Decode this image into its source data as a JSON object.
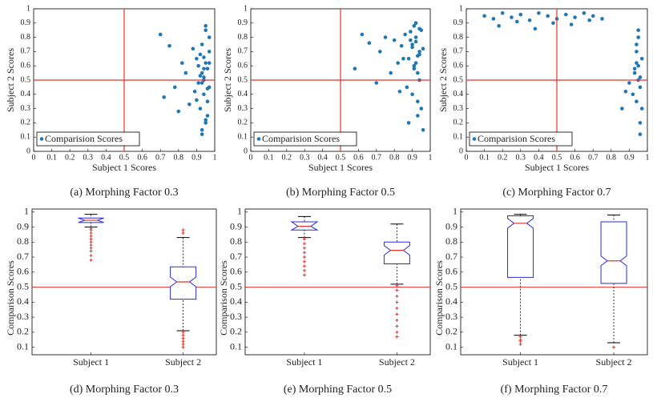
{
  "chart_data": [
    {
      "type": "scatter",
      "caption": "(a) Morphing Factor 0.3",
      "xlabel": "Subject 1 Scores",
      "ylabel": "Subject 2 Scores",
      "xlim": [
        0,
        1
      ],
      "ylim": [
        0,
        1
      ],
      "xticks": [
        0,
        0.1,
        0.2,
        0.3,
        0.4,
        0.5,
        0.6,
        0.7,
        0.8,
        0.9,
        1
      ],
      "yticks": [
        0,
        0.1,
        0.2,
        0.3,
        0.4,
        0.5,
        0.6,
        0.7,
        0.8,
        0.9,
        1
      ],
      "reference_x": 0.5,
      "reference_y": 0.5,
      "reference_color": "#e8332c",
      "series": [
        {
          "name": "Comparision Scores",
          "color": "#1f77b4",
          "x": [
            0.93,
            0.95,
            0.91,
            0.97,
            0.94,
            0.96,
            0.92,
            0.9,
            0.95,
            0.93,
            0.97,
            0.94,
            0.96,
            0.91,
            0.95,
            0.93,
            0.92,
            0.96,
            0.94,
            0.97,
            0.89,
            0.88,
            0.86,
            0.84,
            0.82,
            0.8,
            0.78,
            0.75,
            0.72,
            0.7,
            0.93,
            0.95,
            0.94,
            0.96,
            0.92,
            0.9,
            0.97,
            0.95,
            0.93,
            0.94
          ],
          "y": [
            0.55,
            0.62,
            0.48,
            0.7,
            0.4,
            0.58,
            0.3,
            0.65,
            0.2,
            0.75,
            0.45,
            0.52,
            0.35,
            0.6,
            0.85,
            0.12,
            0.68,
            0.25,
            0.5,
            0.8,
            0.42,
            0.72,
            0.33,
            0.55,
            0.62,
            0.28,
            0.45,
            0.74,
            0.38,
            0.82,
            0.15,
            0.88,
            0.58,
            0.44,
            0.53,
            0.36,
            0.62,
            0.22,
            0.48,
            0.66
          ]
        }
      ]
    },
    {
      "type": "scatter",
      "caption": "(b) Morphing Factor 0.5",
      "xlabel": "Subject 1 Scores",
      "ylabel": "Subject 2 Scores",
      "xlim": [
        0,
        1
      ],
      "ylim": [
        0,
        1
      ],
      "xticks": [
        0,
        0.1,
        0.2,
        0.3,
        0.4,
        0.5,
        0.6,
        0.7,
        0.8,
        0.9,
        1
      ],
      "yticks": [
        0,
        0.1,
        0.2,
        0.3,
        0.4,
        0.5,
        0.6,
        0.7,
        0.8,
        0.9,
        1
      ],
      "reference_x": 0.5,
      "reference_y": 0.5,
      "reference_color": "#e8332c",
      "series": [
        {
          "name": "Comparision Scores",
          "color": "#1f77b4",
          "x": [
            0.9,
            0.92,
            0.94,
            0.88,
            0.95,
            0.91,
            0.93,
            0.89,
            0.96,
            0.87,
            0.92,
            0.94,
            0.9,
            0.93,
            0.86,
            0.84,
            0.82,
            0.8,
            0.78,
            0.75,
            0.72,
            0.7,
            0.66,
            0.62,
            0.58,
            0.91,
            0.93,
            0.95,
            0.89,
            0.92,
            0.94,
            0.88,
            0.9,
            0.85,
            0.83,
            0.96,
            0.92,
            0.94,
            0.91,
            0.93
          ],
          "y": [
            0.75,
            0.8,
            0.7,
            0.65,
            0.85,
            0.6,
            0.55,
            0.78,
            0.72,
            0.45,
            0.9,
            0.68,
            0.4,
            0.35,
            0.82,
            0.74,
            0.62,
            0.78,
            0.55,
            0.8,
            0.7,
            0.48,
            0.76,
            0.82,
            0.58,
            0.88,
            0.25,
            0.3,
            0.84,
            0.62,
            0.5,
            0.2,
            0.73,
            0.65,
            0.42,
            0.15,
            0.77,
            0.86,
            0.58,
            0.67
          ]
        }
      ]
    },
    {
      "type": "scatter",
      "caption": "(c) Morphing Factor 0.7",
      "xlabel": "Subject 1 Scores",
      "ylabel": "Subject 2 Scores",
      "xlim": [
        0,
        1
      ],
      "ylim": [
        0,
        1
      ],
      "xticks": [
        0,
        0.1,
        0.2,
        0.3,
        0.4,
        0.5,
        0.6,
        0.7,
        0.8,
        0.9,
        1
      ],
      "yticks": [
        0,
        0.1,
        0.2,
        0.3,
        0.4,
        0.5,
        0.6,
        0.7,
        0.8,
        0.9,
        1
      ],
      "reference_x": 0.5,
      "reference_y": 0.5,
      "reference_color": "#e8332c",
      "series": [
        {
          "name": "Comparision Scores",
          "color": "#1f77b4",
          "x": [
            0.1,
            0.15,
            0.2,
            0.25,
            0.3,
            0.35,
            0.4,
            0.45,
            0.5,
            0.55,
            0.6,
            0.65,
            0.7,
            0.75,
            0.18,
            0.28,
            0.38,
            0.48,
            0.58,
            0.68,
            0.94,
            0.95,
            0.96,
            0.93,
            0.97,
            0.94,
            0.95,
            0.96,
            0.92,
            0.97,
            0.94,
            0.95,
            0.93,
            0.96,
            0.9,
            0.88,
            0.86,
            0.95,
            0.94,
            0.96
          ],
          "y": [
            0.95,
            0.93,
            0.97,
            0.94,
            0.96,
            0.92,
            0.97,
            0.95,
            0.93,
            0.96,
            0.94,
            0.97,
            0.95,
            0.93,
            0.88,
            0.91,
            0.86,
            0.9,
            0.89,
            0.92,
            0.75,
            0.6,
            0.45,
            0.55,
            0.3,
            0.7,
            0.5,
            0.2,
            0.4,
            0.65,
            0.35,
            0.8,
            0.58,
            0.12,
            0.48,
            0.42,
            0.3,
            0.85,
            0.62,
            0.52
          ]
        }
      ]
    },
    {
      "type": "box",
      "caption": "(d) Morphing Factor 0.3",
      "ylabel": "Comparison Scores",
      "categories": [
        "Subject 1",
        "Subject 2"
      ],
      "ylim": [
        0.05,
        1.02
      ],
      "yticks": [
        0.1,
        0.2,
        0.3,
        0.4,
        0.5,
        0.6,
        0.7,
        0.8,
        0.9,
        1
      ],
      "reference_y": 0.5,
      "reference_color": "#e8332c",
      "boxes": [
        {
          "whislo": 0.9,
          "q1": 0.93,
          "med": 0.945,
          "q3": 0.96,
          "whishi": 0.985,
          "fliers": [
            0.68,
            0.71,
            0.74,
            0.76,
            0.78,
            0.8,
            0.82,
            0.84,
            0.86,
            0.88,
            0.89
          ]
        },
        {
          "whislo": 0.21,
          "q1": 0.42,
          "med": 0.535,
          "q3": 0.635,
          "whishi": 0.83,
          "fliers": [
            0.1,
            0.12,
            0.14,
            0.16,
            0.18,
            0.2,
            0.86,
            0.88
          ]
        }
      ]
    },
    {
      "type": "box",
      "caption": "(e) Morphing Factor 0.5",
      "ylabel": "Comparison Scores",
      "categories": [
        "Subject 1",
        "Subject 2"
      ],
      "ylim": [
        0.05,
        1.02
      ],
      "yticks": [
        0.1,
        0.2,
        0.3,
        0.4,
        0.5,
        0.6,
        0.7,
        0.8,
        0.9,
        1
      ],
      "reference_y": 0.5,
      "reference_color": "#e8332c",
      "boxes": [
        {
          "whislo": 0.83,
          "q1": 0.88,
          "med": 0.905,
          "q3": 0.935,
          "whishi": 0.97,
          "fliers": [
            0.58,
            0.61,
            0.64,
            0.67,
            0.7,
            0.73,
            0.76,
            0.79,
            0.82
          ]
        },
        {
          "whislo": 0.52,
          "q1": 0.655,
          "med": 0.745,
          "q3": 0.8,
          "whishi": 0.92,
          "fliers": [
            0.17,
            0.2,
            0.24,
            0.28,
            0.32,
            0.36,
            0.4,
            0.44,
            0.48,
            0.51
          ]
        }
      ]
    },
    {
      "type": "box",
      "caption": "(f) Morphing Factor 0.7",
      "ylabel": "Comparison Scores",
      "categories": [
        "Subject 1",
        "Subject 2"
      ],
      "ylim": [
        0.05,
        1.02
      ],
      "yticks": [
        0.1,
        0.2,
        0.3,
        0.4,
        0.5,
        0.6,
        0.7,
        0.8,
        0.9,
        1
      ],
      "reference_y": 0.5,
      "reference_color": "#e8332c",
      "boxes": [
        {
          "whislo": 0.18,
          "q1": 0.565,
          "med": 0.925,
          "q3": 0.975,
          "whishi": 0.985,
          "fliers": [
            0.12,
            0.14,
            0.15,
            0.17
          ]
        },
        {
          "whislo": 0.13,
          "q1": 0.525,
          "med": 0.675,
          "q3": 0.935,
          "whishi": 0.98,
          "fliers": [
            0.1
          ]
        }
      ]
    }
  ]
}
